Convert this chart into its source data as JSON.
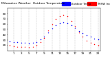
{
  "title_left": "Milwaukee Weather  Outdoor Temperature",
  "title_right": "vs THSW Index",
  "legend_temp_label": "Outdoor Temp",
  "legend_thsw_label": "THSW Index",
  "temp_color": "#0000ff",
  "thsw_color": "#ff0000",
  "background_color": "#ffffff",
  "grid_color": "#888888",
  "hours": [
    0,
    1,
    2,
    3,
    4,
    5,
    6,
    7,
    8,
    9,
    10,
    11,
    12,
    13,
    14,
    15,
    16,
    17,
    18,
    19,
    20,
    21,
    22,
    23
  ],
  "temp_values": [
    28,
    27,
    26,
    25,
    25,
    24,
    25,
    27,
    32,
    37,
    44,
    52,
    58,
    62,
    64,
    62,
    58,
    53,
    47,
    43,
    39,
    36,
    33,
    31
  ],
  "thsw_values": [
    20,
    19,
    18,
    17,
    17,
    16,
    17,
    20,
    26,
    34,
    48,
    60,
    70,
    75,
    77,
    75,
    66,
    56,
    44,
    36,
    29,
    25,
    22,
    20
  ],
  "ylim": [
    10,
    90
  ],
  "xlim": [
    -0.5,
    23.5
  ],
  "ytick_values": [
    20,
    30,
    40,
    50,
    60,
    70,
    80
  ],
  "xtick_values": [
    1,
    3,
    5,
    7,
    9,
    11,
    13,
    15,
    17,
    19,
    21,
    23
  ],
  "title_fontsize": 3.2,
  "tick_fontsize": 3.0,
  "legend_fontsize": 3.0,
  "marker_size": 1.2,
  "figsize": [
    1.6,
    0.87
  ],
  "dpi": 100
}
